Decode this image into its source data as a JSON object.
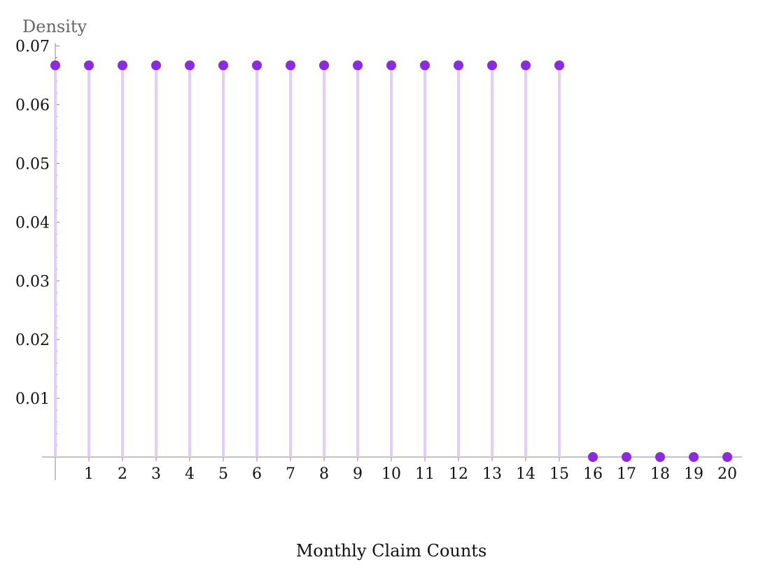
{
  "chart_data": {
    "type": "stem",
    "ylabel": "Density",
    "xlabel": "Monthly Claim Counts",
    "ylim": [
      0,
      0.07
    ],
    "xlim": [
      0,
      20
    ],
    "yticks": [
      "0.01",
      "0.02",
      "0.03",
      "0.04",
      "0.05",
      "0.06",
      "0.07"
    ],
    "x": [
      0,
      1,
      2,
      3,
      4,
      5,
      6,
      7,
      8,
      9,
      10,
      11,
      12,
      13,
      14,
      15,
      16,
      17,
      18,
      19,
      20
    ],
    "values": [
      0.0667,
      0.0667,
      0.0667,
      0.0667,
      0.0667,
      0.0667,
      0.0667,
      0.0667,
      0.0667,
      0.0667,
      0.0667,
      0.0667,
      0.0667,
      0.0667,
      0.0667,
      0.0667,
      0,
      0,
      0,
      0,
      0
    ],
    "colors": {
      "point": "#8a2be2",
      "stem": "#e3cdfb",
      "axis": "#888888"
    }
  }
}
